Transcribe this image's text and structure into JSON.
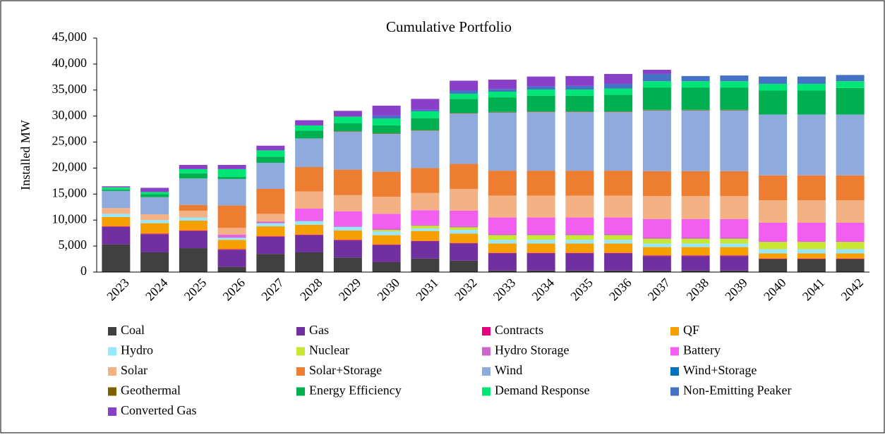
{
  "chart_data": {
    "type": "stacked_bar",
    "title": "Cumulative Portfolio",
    "y_label": "Installed MW",
    "categories": [
      "2023",
      "2024",
      "2025",
      "2026",
      "2027",
      "2028",
      "2029",
      "2030",
      "2031",
      "2032",
      "2033",
      "2034",
      "2035",
      "2036",
      "2037",
      "2038",
      "2039",
      "2040",
      "2041",
      "2042"
    ],
    "ylim": [
      0,
      45000
    ],
    "yticks": [
      0,
      {
        "value": 5000,
        "label": "5,000"
      },
      {
        "value": 10000,
        "label": "10,000"
      },
      {
        "value": 15000,
        "label": "15,000"
      },
      {
        "value": 20000,
        "label": "20,000"
      },
      {
        "value": 25000,
        "label": "25,000"
      },
      {
        "value": 30000,
        "label": "30,000"
      },
      {
        "value": 35000,
        "label": "35,000"
      },
      {
        "value": 40000,
        "label": "40,000"
      },
      {
        "value": 45000,
        "label": "45,000"
      }
    ],
    "series": [
      {
        "name": "Coal",
        "color": "#404040",
        "values": [
          5300,
          3800,
          4600,
          1000,
          3500,
          3800,
          2800,
          1900,
          2600,
          2200,
          300,
          300,
          300,
          300,
          300,
          300,
          300,
          2500,
          2500,
          2500
        ]
      },
      {
        "name": "Gas",
        "color": "#7030a0",
        "values": [
          3400,
          3500,
          3300,
          3300,
          3300,
          3300,
          3300,
          3300,
          3300,
          3300,
          3300,
          3300,
          3300,
          3300,
          2800,
          2800,
          2800,
          0,
          0,
          0
        ]
      },
      {
        "name": "Contracts",
        "color": "#e6007e",
        "values": [
          100,
          100,
          100,
          100,
          100,
          100,
          100,
          100,
          100,
          100,
          100,
          100,
          100,
          100,
          100,
          100,
          100,
          100,
          100,
          100
        ]
      },
      {
        "name": "QF",
        "color": "#f5a000",
        "values": [
          1800,
          2000,
          1900,
          1800,
          1900,
          1900,
          1800,
          1800,
          1900,
          1800,
          1800,
          1800,
          1800,
          1800,
          1600,
          1600,
          1600,
          1000,
          1000,
          1000
        ]
      },
      {
        "name": "Hydro",
        "color": "#99e6ff",
        "values": [
          600,
          600,
          600,
          400,
          600,
          700,
          700,
          700,
          500,
          700,
          700,
          700,
          700,
          700,
          700,
          700,
          700,
          800,
          800,
          800
        ]
      },
      {
        "name": "Nuclear",
        "color": "#c8e632",
        "values": [
          0,
          0,
          0,
          0,
          0,
          0,
          0,
          300,
          500,
          500,
          900,
          900,
          900,
          900,
          900,
          900,
          900,
          1400,
          1400,
          1400
        ]
      },
      {
        "name": "Hydro Storage",
        "color": "#cc66cc",
        "values": [
          0,
          0,
          0,
          300,
          300,
          200,
          200,
          300,
          200,
          300,
          300,
          300,
          300,
          300,
          300,
          300,
          300,
          100,
          100,
          100
        ]
      },
      {
        "name": "Battery",
        "color": "#f25ff0",
        "values": [
          0,
          0,
          0,
          300,
          0,
          2200,
          2800,
          2800,
          2800,
          2900,
          3100,
          3100,
          3100,
          3100,
          3500,
          3500,
          3500,
          3600,
          3600,
          3600
        ]
      },
      {
        "name": "Solar",
        "color": "#f4b183",
        "values": [
          1100,
          1100,
          1300,
          1300,
          1500,
          3300,
          3100,
          3300,
          3300,
          4200,
          4200,
          4200,
          4200,
          4200,
          4400,
          4400,
          4400,
          4300,
          4300,
          4300
        ]
      },
      {
        "name": "Solar+Storage",
        "color": "#ed7d31",
        "values": [
          0,
          0,
          1100,
          4300,
          4800,
          4700,
          4900,
          4800,
          4800,
          4800,
          4800,
          4800,
          4800,
          4800,
          4800,
          4800,
          4800,
          4800,
          4800,
          4800
        ]
      },
      {
        "name": "Wind",
        "color": "#8faadc",
        "values": [
          3300,
          3300,
          5100,
          5100,
          5000,
          5500,
          7300,
          7300,
          7200,
          9700,
          11200,
          11300,
          11300,
          11300,
          11700,
          11700,
          11700,
          11700,
          11700,
          11700
        ]
      },
      {
        "name": "Wind+Storage",
        "color": "#0070c0",
        "values": [
          0,
          0,
          0,
          0,
          0,
          0,
          0,
          0,
          0,
          0,
          0,
          0,
          0,
          0,
          0,
          0,
          0,
          0,
          0,
          0
        ]
      },
      {
        "name": "Geothermal",
        "color": "#7f6000",
        "values": [
          0,
          0,
          0,
          0,
          0,
          0,
          100,
          100,
          100,
          100,
          100,
          100,
          100,
          100,
          100,
          100,
          100,
          0,
          0,
          0
        ]
      },
      {
        "name": "Energy Efficiency",
        "color": "#00b050",
        "values": [
          300,
          600,
          1000,
          400,
          1200,
          1500,
          1500,
          1500,
          2300,
          2700,
          2800,
          3000,
          3000,
          3200,
          4300,
          4300,
          4300,
          4600,
          4600,
          5100
        ]
      },
      {
        "name": "Demand Response",
        "color": "#00e676",
        "values": [
          400,
          400,
          800,
          1500,
          1200,
          1000,
          1300,
          1300,
          1300,
          1000,
          1100,
          1200,
          1200,
          1200,
          1200,
          1200,
          1200,
          1300,
          1300,
          1300
        ]
      },
      {
        "name": "Non-Emitting Peaker",
        "color": "#4472c4",
        "values": [
          0,
          0,
          0,
          0,
          0,
          0,
          0,
          600,
          300,
          600,
          500,
          600,
          700,
          900,
          1400,
          1000,
          1100,
          1400,
          1400,
          1200
        ]
      },
      {
        "name": "Converted Gas",
        "color": "#8a3fc8",
        "values": [
          200,
          800,
          800,
          800,
          900,
          1000,
          1100,
          1900,
          2100,
          1900,
          1800,
          1900,
          1900,
          1900,
          800,
          0,
          0,
          0,
          0,
          0
        ]
      }
    ]
  }
}
